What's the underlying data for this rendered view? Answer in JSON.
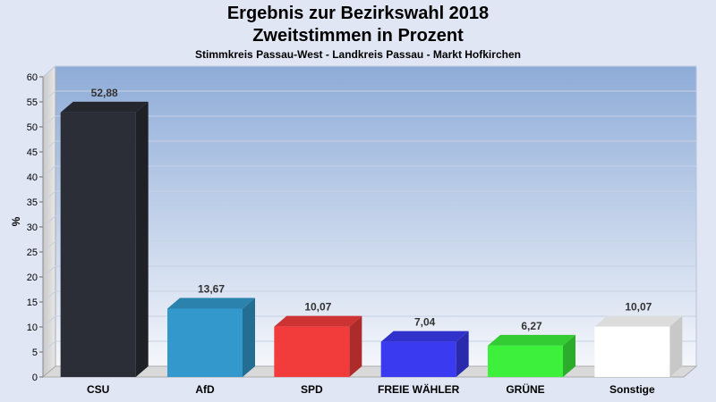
{
  "chart_data": {
    "type": "bar",
    "title": "Ergebnis zur Bezirkswahl 2018",
    "title2": "Zweitstimmen in Prozent",
    "subtitle": "Stimmkreis Passau-West - Landkreis Passau - Markt Hofkirchen",
    "ylabel": "%",
    "ylim": [
      0,
      60
    ],
    "yticks": [
      0,
      5,
      10,
      15,
      20,
      25,
      30,
      35,
      40,
      45,
      50,
      55,
      60
    ],
    "categories": [
      "CSU",
      "AfD",
      "SPD",
      "FREIE WÄHLER",
      "GRÜNE",
      "Sonstige"
    ],
    "values": [
      52.88,
      13.67,
      10.07,
      7.04,
      6.27,
      10.07
    ],
    "value_labels": [
      "52,88",
      "13,67",
      "10,07",
      "7,04",
      "6,27",
      "10,07"
    ],
    "colors": [
      "#2b2e36",
      "#3399cc",
      "#f23c3c",
      "#3a3af0",
      "#3cf03c",
      "#ffffff"
    ],
    "grid": true,
    "legend": "none"
  }
}
